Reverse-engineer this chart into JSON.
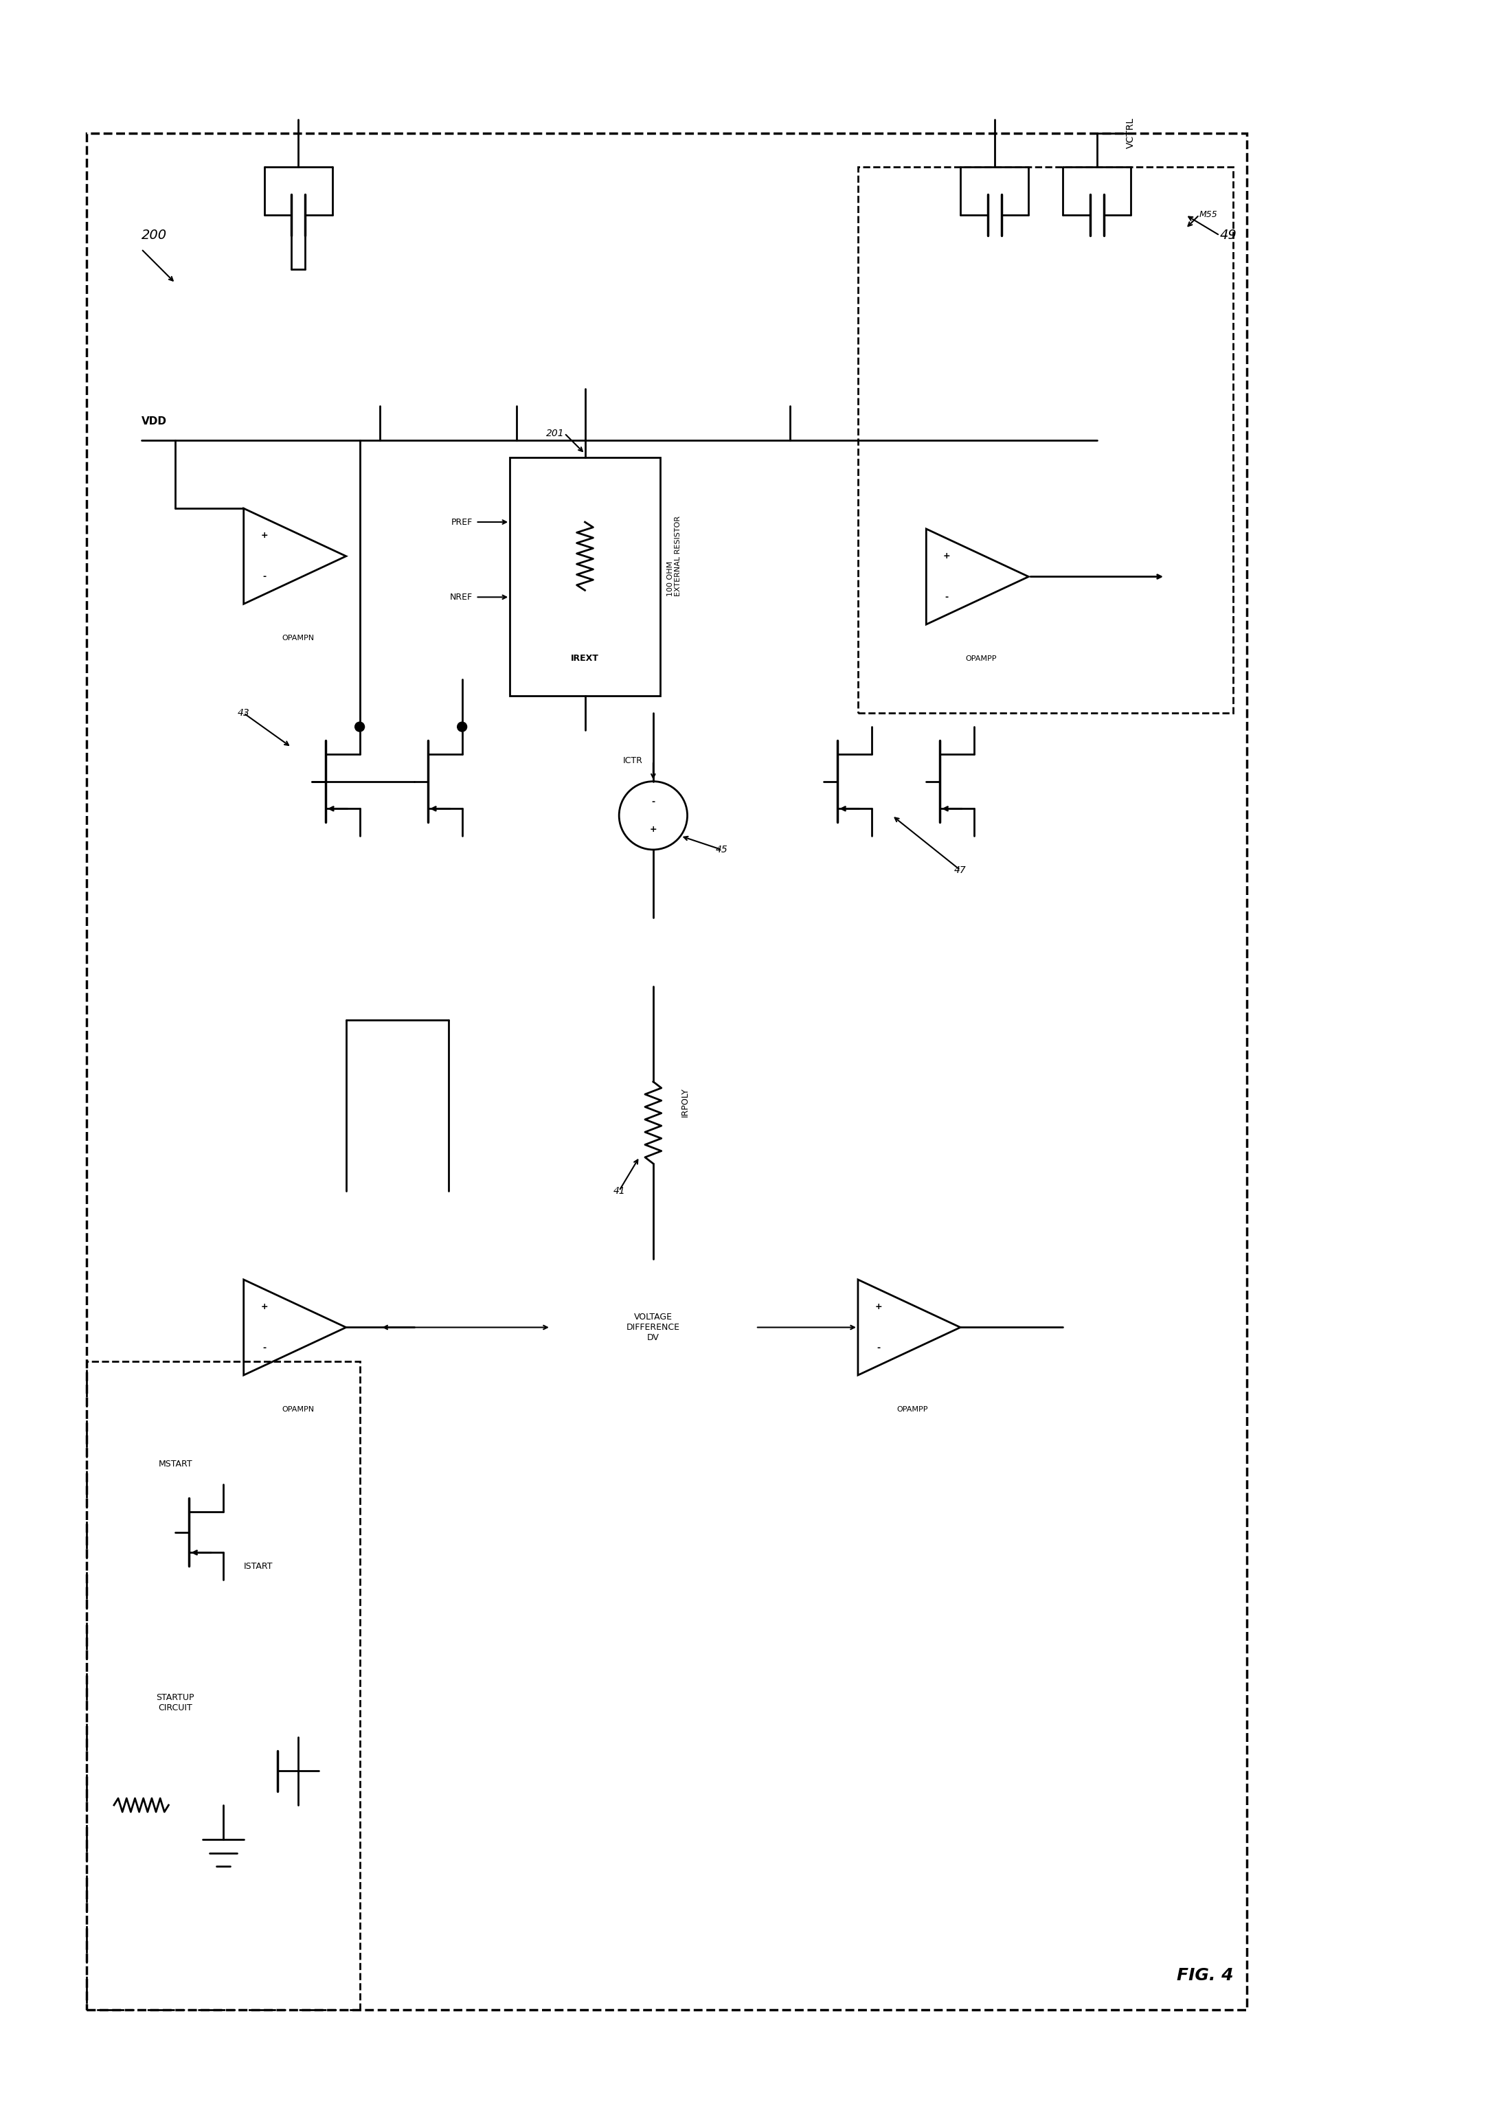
{
  "title": "FIG. 4",
  "bg_color": "#ffffff",
  "line_color": "#000000",
  "fig_width": 21.69,
  "fig_height": 30.85,
  "labels": {
    "fig_num": "FIG. 4",
    "block200": "200",
    "block49": "49",
    "vdd": "VDD",
    "vctrl": "VCTRL",
    "opampn1": "OPAMPN",
    "opampn2": "OPAMPN",
    "opampp1": "OPAMPP",
    "opampp2": "OPAMPP",
    "irext": "IREXT",
    "irpoly": "IRPOLY",
    "ictr": "ICTR",
    "pref": "PREF",
    "nref": "NREF",
    "ext_res": "100 OHM\nEXTERNAL RESISTOR",
    "vol_diff": "VOLTAGE\nDIFFERENCE\nDV",
    "num201": "201",
    "num41": "41",
    "num43": "43",
    "num45": "45",
    "num47": "47",
    "mstart": "MSTART",
    "istart": "ISTART",
    "startup": "STARTUP\nCIRCUIT",
    "m55": "M55"
  }
}
